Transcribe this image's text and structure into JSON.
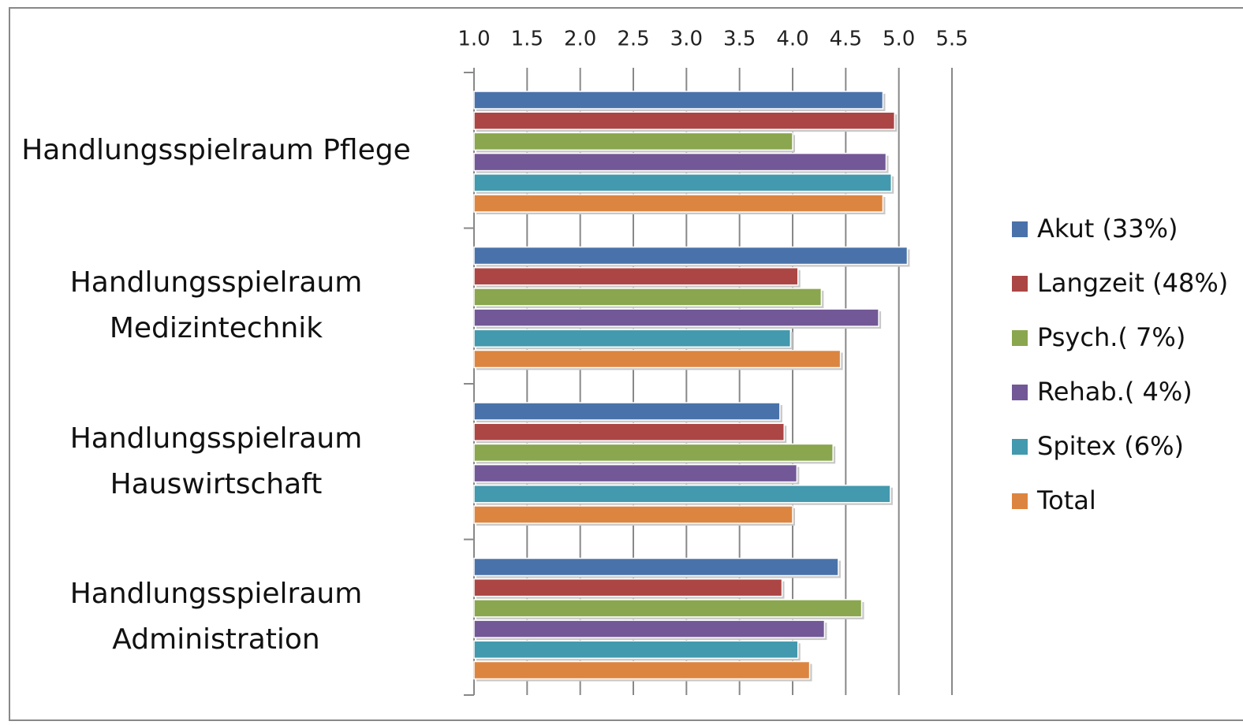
{
  "chart_data": {
    "type": "bar",
    "orientation": "horizontal",
    "categories": [
      "Handlungsspielraum Pflege",
      "Handlungsspielraum\nMedizintechnik",
      "Handlungsspielraum\nHauswirtschaft",
      "Handlungsspielraum\nAdministration"
    ],
    "series": [
      {
        "name": "Akut (33%)",
        "color": "#4a72aa",
        "values": [
          4.85,
          5.08,
          3.88,
          4.43
        ]
      },
      {
        "name": "Langzeit (48%)",
        "color": "#ab4644",
        "values": [
          4.96,
          4.05,
          3.92,
          3.9
        ]
      },
      {
        "name": "Psych.( 7%)",
        "color": "#8aa64e",
        "values": [
          4.0,
          4.27,
          4.38,
          4.65
        ]
      },
      {
        "name": "Rehab.( 4%)",
        "color": "#725896",
        "values": [
          4.88,
          4.81,
          4.04,
          4.3
        ]
      },
      {
        "name": "Spitex (6%)",
        "color": "#4399ad",
        "values": [
          4.93,
          3.98,
          4.92,
          4.05
        ]
      },
      {
        "name": "Total",
        "color": "#dc8540",
        "values": [
          4.85,
          4.45,
          4.0,
          4.16
        ]
      }
    ],
    "xlim": [
      1,
      5.5
    ],
    "xticks": [
      {
        "value": 1,
        "label": "1.0"
      },
      1.5,
      {
        "value": 2,
        "label": "2.0"
      },
      2.5,
      {
        "value": 3,
        "label": "3.0"
      },
      3.5,
      {
        "value": 4,
        "label": "4.0"
      },
      4.5,
      {
        "value": 5,
        "label": "5.0"
      },
      5.5
    ],
    "grid": true,
    "legend": "right"
  }
}
